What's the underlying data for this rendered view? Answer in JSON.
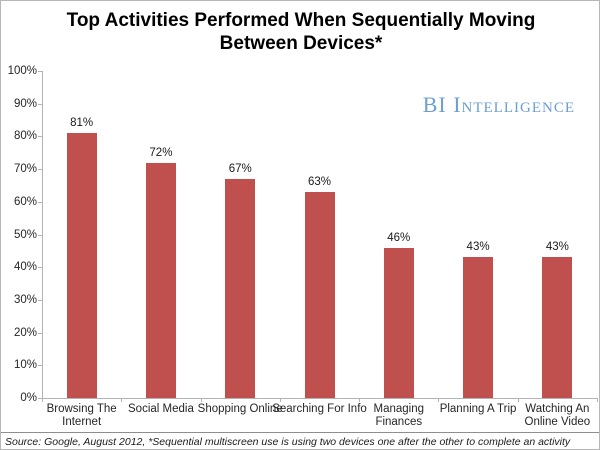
{
  "title": "Top Activities Performed When Sequentially Moving Between Devices*",
  "watermark": "BI Intelligence",
  "source_note": "Source: Google, August 2012, *Sequential multiscreen use is using two devices one after the other to complete an activity",
  "colors": {
    "bar": "#c0504d",
    "watermark": "#6c9fd3",
    "axis": "#b3b3b3",
    "text": "#262626"
  },
  "chart_data": {
    "type": "bar",
    "title": "Top Activities Performed When Sequentially Moving Between Devices*",
    "categories": [
      "Browsing The Internet",
      "Social Media",
      "Shopping Online",
      "Searching For Info",
      "Managing Finances",
      "Planning A Trip",
      "Watching An Online Video"
    ],
    "values": [
      81,
      72,
      67,
      63,
      46,
      43,
      43
    ],
    "data_labels": [
      "81%",
      "72%",
      "67%",
      "63%",
      "46%",
      "43%",
      "43%"
    ],
    "xtick_label_lines": [
      [
        "Browsing The",
        "Internet"
      ],
      [
        "Social Media"
      ],
      [
        "Shopping Online"
      ],
      [
        "Searching For Info"
      ],
      [
        "Managing",
        "Finances"
      ],
      [
        "Planning A Trip"
      ],
      [
        "Watching An",
        "Online Video"
      ]
    ],
    "xlabel": "",
    "ylabel": "",
    "ylim": [
      0,
      100
    ],
    "ytick_labels": [
      "0%",
      "10%",
      "20%",
      "30%",
      "40%",
      "50%",
      "60%",
      "70%",
      "80%",
      "90%",
      "100%"
    ],
    "grid": false,
    "legend": false,
    "bar_color": "#c0504d"
  }
}
